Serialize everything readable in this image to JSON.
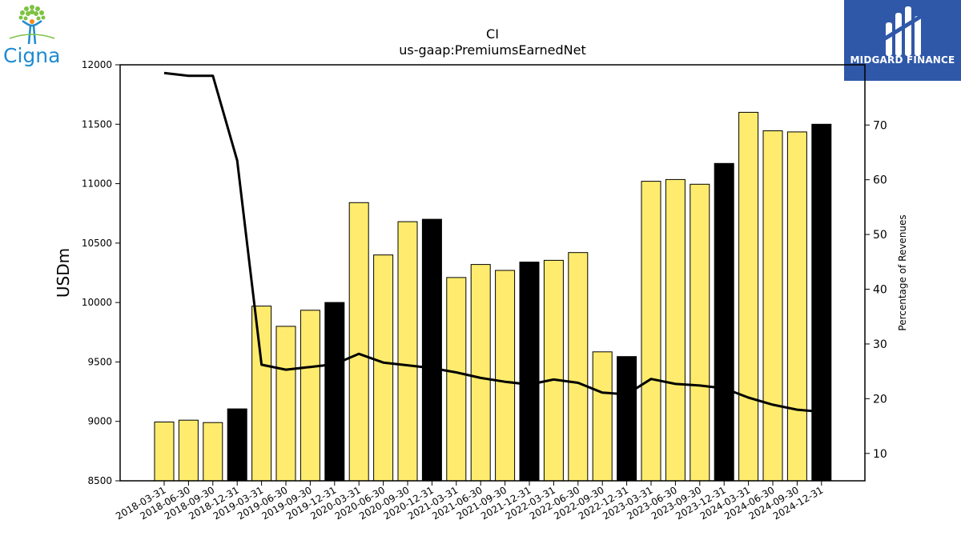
{
  "logos": {
    "left_text": "Cigna",
    "right_text": "MIDGARD FINANCE"
  },
  "colors": {
    "bar_highlight": "#ffec6e",
    "bar_annual": "#000000",
    "line": "#000000",
    "midgard_bg": "#2f58a8",
    "cigna_blue": "#1f8bd0",
    "cigna_green": "#7dc242"
  },
  "chart_data": {
    "type": "bar",
    "title": "CI",
    "subtitle": "us-gaap:PremiumsEarnedNet",
    "ylabel": "USDm",
    "y2label": "Percentage of Revenues",
    "ylim": [
      8500,
      12000
    ],
    "y2lim": [
      5,
      81
    ],
    "yticks": [
      8500,
      9000,
      9500,
      10000,
      10500,
      11000,
      11500,
      12000
    ],
    "y2ticks": [
      10,
      20,
      30,
      40,
      50,
      60,
      70
    ],
    "categories": [
      "2018-03-31",
      "2018-06-30",
      "2018-09-30",
      "2018-12-31",
      "2019-03-31",
      "2019-06-30",
      "2019-09-30",
      "2019-12-31",
      "2020-03-31",
      "2020-06-30",
      "2020-09-30",
      "2020-12-31",
      "2021-03-31",
      "2021-06-30",
      "2021-09-30",
      "2021-12-31",
      "2022-03-31",
      "2022-06-30",
      "2022-09-30",
      "2022-12-31",
      "2023-03-31",
      "2023-06-30",
      "2023-09-30",
      "2023-12-31",
      "2024-03-31",
      "2024-06-30",
      "2024-09-30",
      "2024-12-31"
    ],
    "series": [
      {
        "type": "bar",
        "values": [
          8995,
          9010,
          8990,
          9105,
          9970,
          9800,
          9935,
          10000,
          10840,
          10400,
          10680,
          10700,
          10210,
          10320,
          10270,
          10340,
          10355,
          10420,
          9585,
          9545,
          11020,
          11035,
          10995,
          11170,
          11600,
          11445,
          11435,
          11500
        ],
        "annual": [
          false,
          false,
          false,
          true,
          false,
          false,
          false,
          true,
          false,
          false,
          false,
          true,
          false,
          false,
          false,
          true,
          false,
          false,
          false,
          true,
          false,
          false,
          false,
          true,
          false,
          false,
          false,
          true
        ]
      },
      {
        "type": "line",
        "axis": "right",
        "values": [
          79.5,
          79.0,
          79.0,
          63.5,
          26.2,
          25.3,
          25.8,
          26.3,
          28.2,
          26.6,
          26.1,
          25.6,
          24.8,
          23.8,
          23.1,
          22.6,
          23.5,
          22.9,
          21.1,
          20.8,
          23.6,
          22.7,
          22.4,
          21.9,
          20.2,
          18.9,
          18.0,
          17.6
        ]
      }
    ],
    "grid": false
  }
}
